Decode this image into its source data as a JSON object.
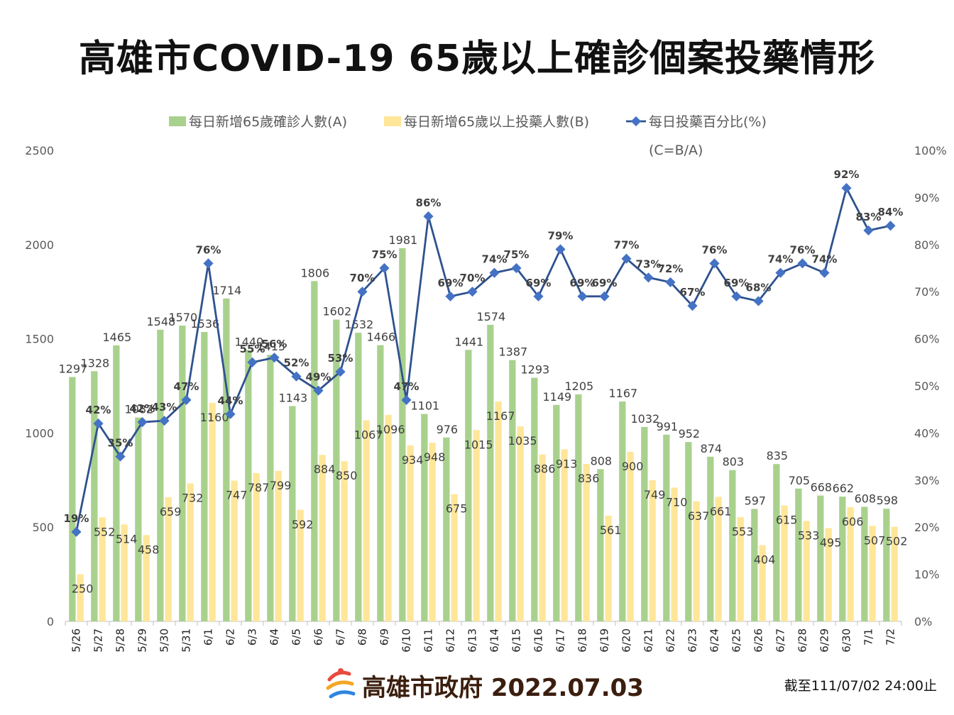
{
  "title": "高雄市COVID-19 65歲以上確診個案投藥情形",
  "footer": {
    "org": "高雄市政府 2022.07.03",
    "note": "截至111/07/02 24:00止"
  },
  "colors": {
    "series_a": "#a9d18e",
    "series_b": "#ffe699",
    "series_c": "#2f528f",
    "marker": "#4472c4",
    "grid": "#d9d9d9",
    "axis_text": "#595959"
  },
  "chart_data": {
    "type": "bar",
    "categories": [
      "5/26",
      "5/27",
      "5/28",
      "5/29",
      "5/30",
      "5/31",
      "6/1",
      "6/2",
      "6/3",
      "6/4",
      "6/5",
      "6/6",
      "6/7",
      "6/8",
      "6/9",
      "6/10",
      "6/11",
      "6/12",
      "6/13",
      "6/14",
      "6/15",
      "6/16",
      "6/17",
      "6/18",
      "6/19",
      "6/20",
      "6/21",
      "6/22",
      "6/23",
      "6/24",
      "6/25",
      "6/26",
      "6/27",
      "6/28",
      "6/29",
      "6/30",
      "7/1",
      "7/2"
    ],
    "series": [
      {
        "name": "每日新增65歲確診人數(A)",
        "type": "bar",
        "axis": "left",
        "values": [
          1297,
          1328,
          1465,
          1082,
          1548,
          1570,
          1536,
          1714,
          1440,
          1415,
          1143,
          1806,
          1602,
          1532,
          1466,
          1981,
          1101,
          976,
          1441,
          1574,
          1387,
          1293,
          1149,
          1205,
          808,
          1167,
          1032,
          991,
          952,
          874,
          803,
          597,
          835,
          705,
          668,
          662,
          608,
          598
        ],
        "labels": [
          "1297",
          "1328",
          "1465",
          "1082",
          "1548",
          "1570",
          "1536",
          "1714",
          "1440",
          "1415",
          "1143",
          "1806",
          "1602",
          "1532",
          "1466",
          "1981",
          "1101",
          "976",
          "1441",
          "1574",
          "1387",
          "1293",
          "1149",
          "1205",
          "808",
          "1167",
          "1032",
          "991",
          "952",
          "874",
          "803",
          "597",
          "835",
          "705",
          "668",
          "662",
          "608",
          "598"
        ]
      },
      {
        "name": "每日新增65歲以上投藥人數(B)",
        "type": "bar",
        "axis": "left",
        "values": [
          250,
          552,
          514,
          458,
          659,
          732,
          1160,
          747,
          787,
          799,
          592,
          884,
          850,
          1067,
          1096,
          934,
          948,
          675,
          1015,
          1167,
          1035,
          886,
          913,
          836,
          561,
          900,
          749,
          710,
          637,
          661,
          553,
          404,
          615,
          533,
          495,
          606,
          507,
          502
        ],
        "labels": [
          "250",
          "552",
          "514",
          "458",
          "659",
          "732",
          "1160",
          "747",
          "787",
          "799",
          "592",
          "884",
          "850",
          "1067",
          "1096",
          "934",
          "948",
          "675",
          "1015",
          "1167",
          "1035",
          "886",
          "913",
          "836",
          "561",
          "900",
          "749",
          "710",
          "637",
          "661",
          "553",
          "404",
          "615",
          "533",
          "495",
          "606",
          "507",
          "502"
        ]
      },
      {
        "name": "每日投藥百分比(%)",
        "name2": "(C=B/A)",
        "type": "line",
        "axis": "right",
        "values": [
          19,
          42,
          35,
          42.3,
          42.6,
          47,
          76,
          44,
          55,
          56,
          52,
          49,
          53,
          70,
          75,
          47,
          86,
          69,
          70,
          74,
          75,
          69,
          79,
          69,
          69,
          77,
          73,
          72,
          67,
          76,
          69,
          68,
          74,
          76,
          74,
          92,
          83,
          84
        ],
        "labels": [
          "19%",
          "42%",
          "35%",
          "42%",
          "43%",
          "47%",
          "76%",
          "44%",
          "55%",
          "56%",
          "52%",
          "49%",
          "53%",
          "70%",
          "75%",
          "47%",
          "86%",
          "69%",
          "70%",
          "74%",
          "75%",
          "69%",
          "79%",
          "69%",
          "69%",
          "77%",
          "73%",
          "72%",
          "67%",
          "76%",
          "69%",
          "68%",
          "74%",
          "76%",
          "74%",
          "92%",
          "83%",
          "84%"
        ]
      }
    ],
    "y_left": {
      "min": 0,
      "max": 2500,
      "ticks": [
        "0",
        "500",
        "1000",
        "1500",
        "2000",
        "2500"
      ]
    },
    "y_right": {
      "min": 0,
      "max": 100,
      "ticks": [
        "0%",
        "10%",
        "20%",
        "30%",
        "40%",
        "50%",
        "60%",
        "70%",
        "80%",
        "90%",
        "100%"
      ]
    },
    "legend": "top",
    "grid": false
  }
}
